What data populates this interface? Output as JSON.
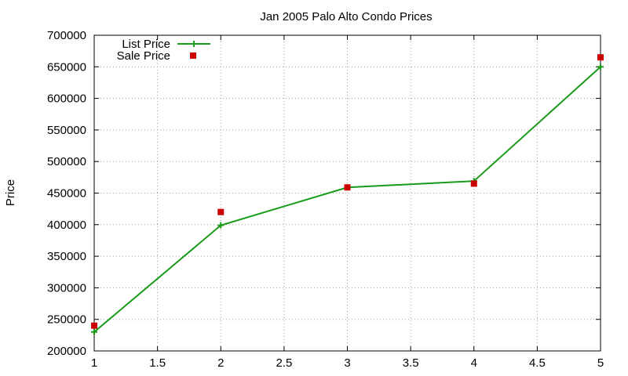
{
  "chart_data": {
    "type": "line",
    "title": "Jan 2005 Palo Alto Condo Prices",
    "xlabel": "",
    "ylabel": "Price",
    "xlim": [
      1,
      5
    ],
    "ylim": [
      200000,
      700000
    ],
    "x_ticks": [
      "1",
      "1.5",
      "2",
      "2.5",
      "3",
      "3.5",
      "4",
      "4.5",
      "5"
    ],
    "y_ticks": [
      "200000",
      "250000",
      "300000",
      "350000",
      "400000",
      "450000",
      "500000",
      "550000",
      "600000",
      "650000",
      "700000"
    ],
    "grid": true,
    "legend_position": "top-left",
    "series": [
      {
        "name": "List Price",
        "style": "lines-points",
        "marker": "plus",
        "color": "#1a9a1a",
        "x": [
          1,
          2,
          3,
          4,
          5
        ],
        "y": [
          230000,
          399000,
          459000,
          469000,
          650000
        ]
      },
      {
        "name": "Sale Price",
        "style": "points",
        "marker": "square",
        "color": "#cc0000",
        "x": [
          1,
          2,
          3,
          4,
          5
        ],
        "y": [
          240000,
          420000,
          459000,
          465000,
          665000
        ]
      }
    ]
  }
}
